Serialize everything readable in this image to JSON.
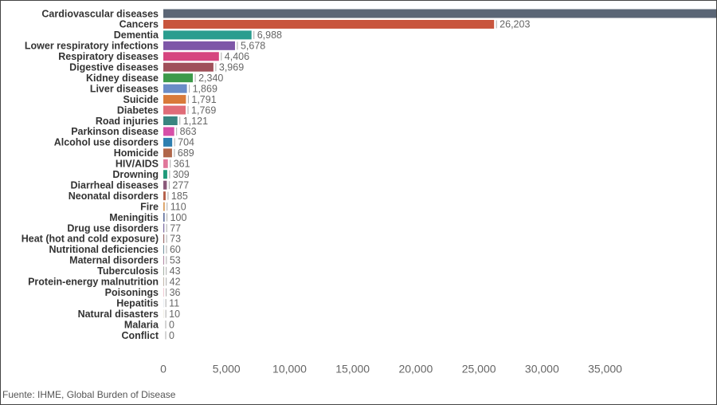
{
  "chart_data": {
    "type": "barh",
    "source": "Fuente: IHME, Global Burden of Disease",
    "categories": [
      "Cardiovascular diseases",
      "Cancers",
      "Dementia",
      "Lower respiratory infections",
      "Respiratory diseases",
      "Digestive diseases",
      "Kidney disease",
      "Liver diseases",
      "Suicide",
      "Diabetes",
      "Road injuries",
      "Parkinson disease",
      "Alcohol use disorders",
      "Homicide",
      "HIV/AIDS",
      "Drowning",
      "Diarrheal diseases",
      "Neonatal disorders",
      "Fire",
      "Meningitis",
      "Drug use disorders",
      "Heat (hot and cold exposure)",
      "Nutritional deficiencies",
      "Maternal disorders",
      "Tuberculosis",
      "Protein-energy malnutrition",
      "Poisonings",
      "Hepatitis",
      "Natural disasters",
      "Malaria",
      "Conflict"
    ],
    "values": [
      45000,
      26203,
      6988,
      5678,
      4406,
      3969,
      2340,
      1869,
      1791,
      1769,
      1121,
      863,
      704,
      689,
      361,
      309,
      277,
      185,
      110,
      100,
      77,
      73,
      60,
      53,
      43,
      42,
      36,
      11,
      10,
      0,
      0
    ],
    "value_labels": [
      null,
      "26,203",
      "6,988",
      "5,678",
      "4,406",
      "3,969",
      "2,340",
      "1,869",
      "1,791",
      "1,769",
      "1,121",
      "863",
      "704",
      "689",
      "361",
      "309",
      "277",
      "185",
      "110",
      "100",
      "77",
      "73",
      "60",
      "53",
      "43",
      "42",
      "36",
      "11",
      "10",
      "0",
      "0"
    ],
    "colors": [
      "#5b6676",
      "#c8553d",
      "#2a9d8f",
      "#7e57a8",
      "#d6457f",
      "#a0505a",
      "#3d9a4a",
      "#6a8cc7",
      "#d97a3a",
      "#e06c78",
      "#3a8580",
      "#d64fa8",
      "#2e7fb0",
      "#b0674a",
      "#e0779a",
      "#1f9a7a",
      "#8a5a7a",
      "#b5604a",
      "#d99a5a",
      "#5a6a9a",
      "#7a6aa0",
      "#9a6a6a",
      "#6a8a9a",
      "#a07090",
      "#7a8a7a",
      "#a09080",
      "#e0a0b0",
      "#8a9ab0",
      "#b0a070",
      "#999999",
      "#999999"
    ],
    "xlim": [
      0,
      43800
    ],
    "xticks": [
      0,
      {
        "value": 5000,
        "label": "5,000"
      },
      {
        "value": 10000,
        "label": "10,000"
      },
      {
        "value": 15000,
        "label": "15,000"
      },
      {
        "value": 20000,
        "label": "20,000"
      },
      {
        "value": 25000,
        "label": "25,000"
      },
      {
        "value": 30000,
        "label": "30,000"
      },
      {
        "value": 35000,
        "label": "35,000"
      }
    ],
    "grid": false
  }
}
